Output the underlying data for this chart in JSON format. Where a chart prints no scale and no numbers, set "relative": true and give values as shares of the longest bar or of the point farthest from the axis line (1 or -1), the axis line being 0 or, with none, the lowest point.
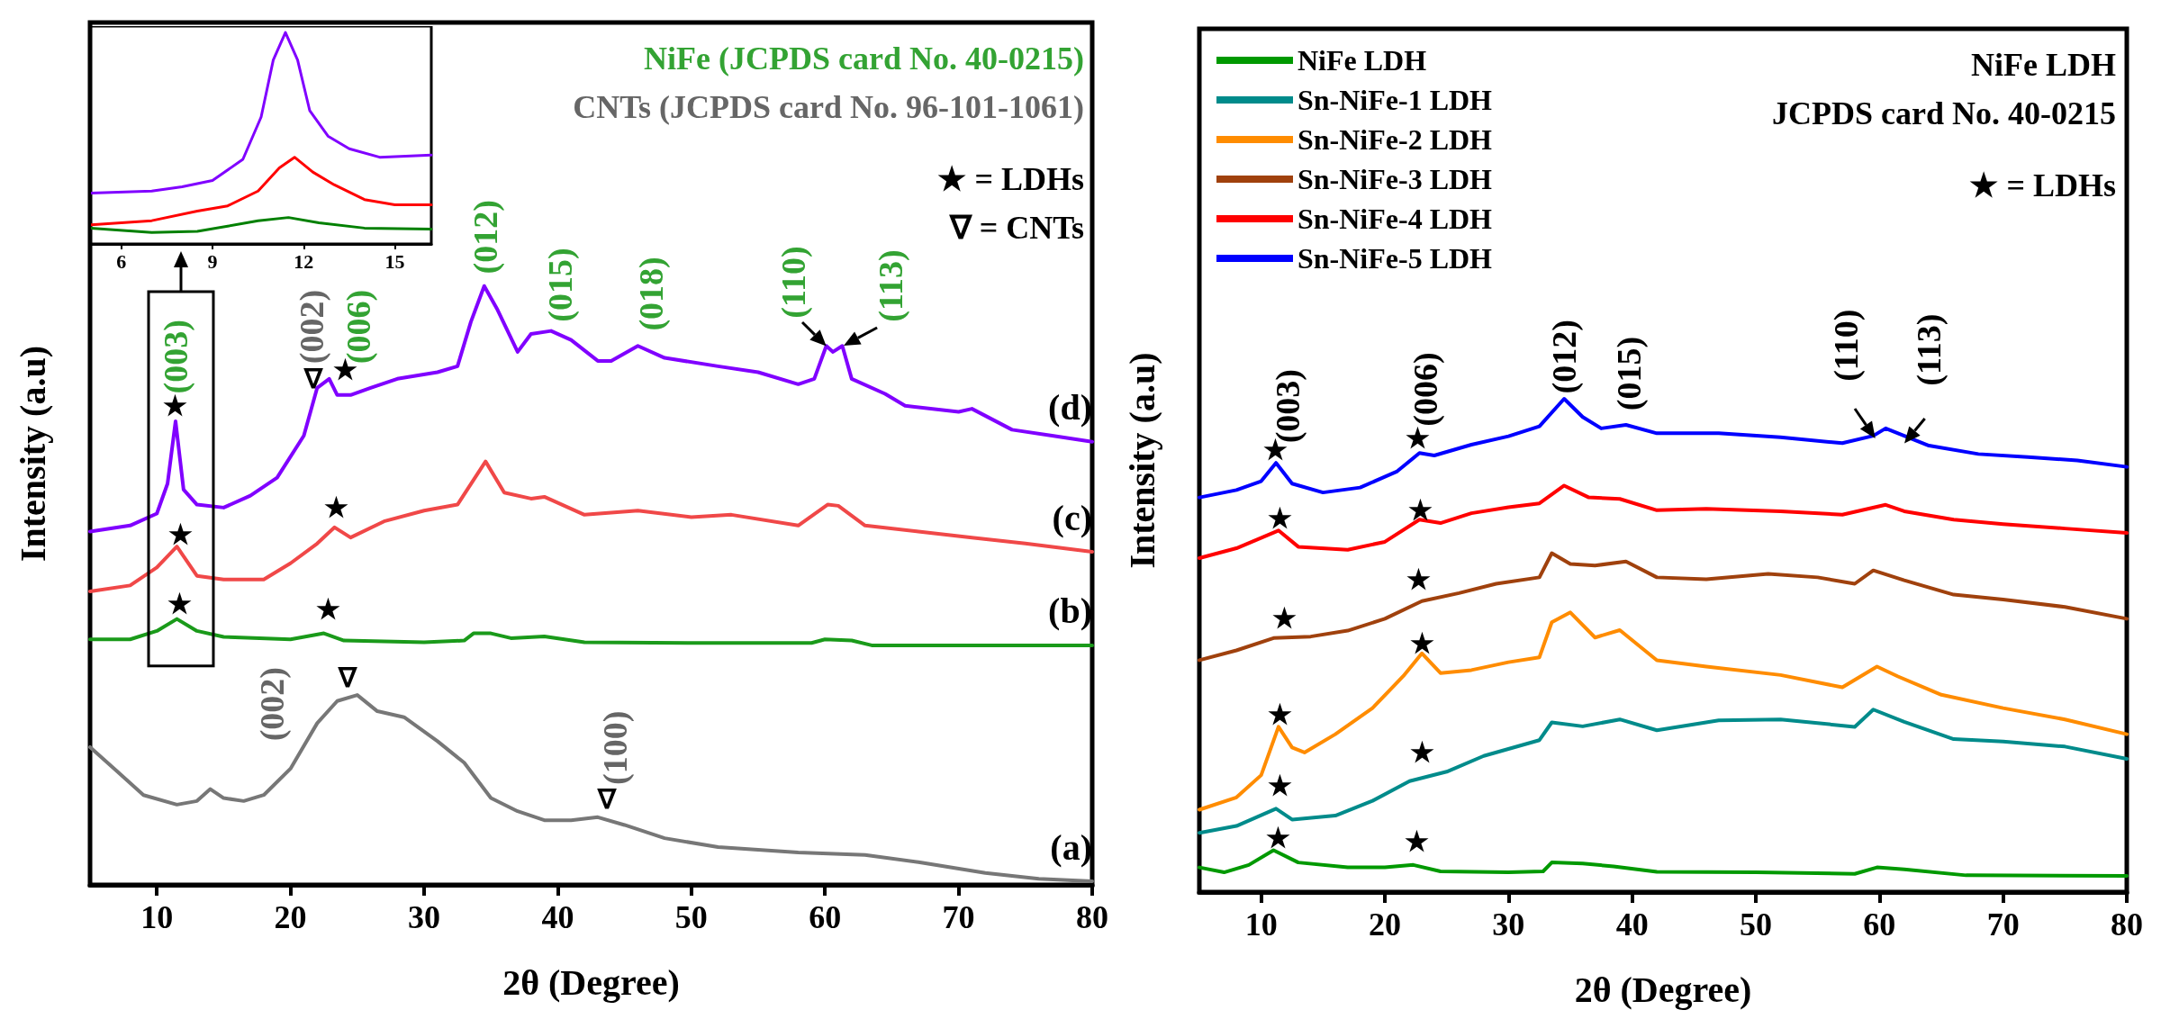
{
  "chart_data": [
    {
      "type": "line",
      "relative": true,
      "xlabel": "2θ (Degree)",
      "ylabel": "Intensity (a.u)",
      "xlim": [
        5,
        80
      ],
      "xticks": [
        10,
        20,
        30,
        40,
        50,
        60,
        70,
        80
      ],
      "tick_labels": "x",
      "legend": false,
      "marker": "none",
      "line_style": "solid",
      "series": [
        {
          "name": "(a)",
          "color": "#777777",
          "x": [
            5,
            7,
            9,
            11.5,
            13,
            14,
            15,
            16.5,
            18,
            20,
            22,
            23.5,
            25,
            26.5,
            28.5,
            31,
            33,
            35,
            37,
            39,
            41,
            43,
            45,
            48,
            52,
            58,
            63,
            67,
            72,
            76,
            80
          ],
          "values": [
            0.23,
            0.19,
            0.15,
            0.134,
            0.14,
            0.16,
            0.145,
            0.14,
            0.15,
            0.194,
            0.27,
            0.307,
            0.317,
            0.29,
            0.28,
            0.24,
            0.204,
            0.145,
            0.123,
            0.108,
            0.108,
            0.113,
            0.1,
            0.078,
            0.063,
            0.054,
            0.05,
            0.038,
            0.02,
            0.01,
            0.006
          ]
        },
        {
          "name": "(b)",
          "color": "#1a9a1a",
          "x": [
            5,
            8,
            10,
            11.5,
            13,
            15,
            20,
            22.5,
            24,
            30,
            33,
            33.7,
            35,
            36.5,
            39,
            42,
            50,
            59,
            60,
            62,
            63.5,
            80
          ],
          "values": [
            0.41,
            0.41,
            0.424,
            0.444,
            0.424,
            0.414,
            0.41,
            0.42,
            0.408,
            0.405,
            0.408,
            0.42,
            0.42,
            0.412,
            0.415,
            0.405,
            0.404,
            0.404,
            0.41,
            0.408,
            0.4,
            0.4
          ]
        },
        {
          "name": "(c)",
          "color": "#f04848",
          "x": [
            5,
            8,
            10,
            11.5,
            13,
            15,
            18,
            20,
            22,
            23.3,
            24.5,
            27,
            30,
            32.5,
            34.6,
            36,
            38,
            39,
            42,
            46,
            50,
            53,
            58,
            60.2,
            61,
            63,
            67,
            71,
            75,
            80
          ],
          "values": [
            0.49,
            0.5,
            0.53,
            0.565,
            0.516,
            0.51,
            0.51,
            0.537,
            0.57,
            0.597,
            0.58,
            0.607,
            0.625,
            0.635,
            0.707,
            0.655,
            0.645,
            0.648,
            0.618,
            0.625,
            0.614,
            0.618,
            0.6,
            0.635,
            0.633,
            0.6,
            0.59,
            0.58,
            0.57,
            0.556
          ]
        },
        {
          "name": "(d)",
          "color": "#8000ff",
          "x": [
            5,
            8,
            10,
            10.8,
            11.4,
            12,
            13,
            15,
            17,
            19,
            21,
            22,
            22.9,
            23.5,
            24.5,
            26,
            28,
            31,
            32.5,
            33.5,
            34.5,
            35.5,
            37,
            38,
            39.5,
            41,
            43,
            44,
            46,
            48,
            52,
            55,
            58,
            59.2,
            60.1,
            60.6,
            61.3,
            62,
            64.5,
            66,
            70,
            71,
            74,
            77,
            80
          ],
          "values": [
            0.59,
            0.6,
            0.62,
            0.67,
            0.774,
            0.66,
            0.635,
            0.63,
            0.65,
            0.68,
            0.75,
            0.83,
            0.845,
            0.818,
            0.818,
            0.83,
            0.845,
            0.856,
            0.866,
            0.94,
            1,
            0.96,
            0.89,
            0.92,
            0.925,
            0.91,
            0.875,
            0.875,
            0.9,
            0.88,
            0.866,
            0.856,
            0.836,
            0.845,
            0.9,
            0.89,
            0.9,
            0.845,
            0.82,
            0.8,
            0.79,
            0.795,
            0.76,
            0.75,
            0.74
          ]
        }
      ],
      "annotations": [
        "NiFe (JCPDS card No. 40-0215)",
        "CNTs (JCPDS card No. 96-101-1061)",
        "★ = LDHs",
        "∇ = CNTs",
        "(003)",
        "(002)",
        "(006)",
        "(012)",
        "(015)",
        "(018)",
        "(110)",
        "(113)",
        "(002)",
        "(100)",
        "★",
        "∇",
        "★",
        "★",
        "★",
        "★",
        "★",
        "∇",
        "∇"
      ]
    },
    {
      "type": "line",
      "relative": true,
      "xlim": [
        5,
        16.2
      ],
      "xticks": [
        6,
        9,
        12,
        15
      ],
      "tick_labels": "x",
      "legend": false,
      "marker": "none",
      "line_style": "solid",
      "series": [
        {
          "color": "#8000ff",
          "x": [
            5,
            7,
            8,
            9,
            10,
            10.6,
            11,
            11.4,
            11.8,
            12.2,
            12.8,
            13.5,
            14.5,
            16.2
          ],
          "values": [
            0.24,
            0.25,
            0.27,
            0.3,
            0.4,
            0.6,
            0.87,
            1,
            0.87,
            0.63,
            0.51,
            0.45,
            0.41,
            0.42
          ]
        },
        {
          "color": "#ff0000",
          "x": [
            5,
            7,
            8.5,
            9.5,
            10.5,
            11.2,
            11.7,
            12.3,
            13,
            14,
            15,
            16.2
          ],
          "values": [
            0.09,
            0.11,
            0.155,
            0.18,
            0.25,
            0.36,
            0.41,
            0.34,
            0.28,
            0.21,
            0.185,
            0.185
          ]
        },
        {
          "color": "#008000",
          "x": [
            5,
            7,
            8.5,
            9.5,
            10.5,
            11.5,
            12.5,
            14,
            16.2
          ],
          "values": [
            0.075,
            0.054,
            0.06,
            0.084,
            0.11,
            0.125,
            0.1,
            0.075,
            0.07
          ]
        }
      ]
    },
    {
      "type": "line",
      "relative": true,
      "xlabel": "2θ (Degree)",
      "ylabel": "Intensity (a.u)",
      "xlim": [
        5,
        80
      ],
      "xticks": [
        10,
        20,
        30,
        40,
        50,
        60,
        70,
        80
      ],
      "tick_labels": "x",
      "legend": "top left",
      "marker": "none",
      "line_style": "solid",
      "series": [
        {
          "name": "NiFe LDH",
          "color": "#009900",
          "x": [
            5,
            7,
            9,
            11,
            13,
            17,
            20,
            22.3,
            24.5,
            30,
            32.8,
            33.5,
            36,
            38.5,
            42,
            50,
            58,
            59.8,
            62,
            67,
            80
          ],
          "values": [
            0.05,
            0.04,
            0.055,
            0.085,
            0.06,
            0.05,
            0.05,
            0.055,
            0.042,
            0.04,
            0.042,
            0.06,
            0.058,
            0.052,
            0.041,
            0.04,
            0.037,
            0.05,
            0.046,
            0.034,
            0.033
          ]
        },
        {
          "name": "Sn-NiFe-1 LDH",
          "color": "#008b8b",
          "x": [
            5,
            8,
            11.2,
            12.5,
            16,
            19,
            22,
            25,
            28,
            32.5,
            33.5,
            36,
            39,
            42,
            47,
            52,
            58,
            59.5,
            62,
            66,
            70,
            75,
            80
          ],
          "values": [
            0.12,
            0.134,
            0.169,
            0.147,
            0.155,
            0.185,
            0.225,
            0.244,
            0.276,
            0.308,
            0.344,
            0.336,
            0.35,
            0.328,
            0.348,
            0.35,
            0.335,
            0.37,
            0.345,
            0.31,
            0.305,
            0.295,
            0.27
          ]
        },
        {
          "name": "Sn-NiFe-2 LDH",
          "color": "#ff8c00",
          "x": [
            5,
            8,
            10,
            11.4,
            12.5,
            13.5,
            16,
            19,
            21.5,
            23,
            24.5,
            27,
            30,
            32.5,
            33.5,
            35,
            37,
            39,
            42,
            46,
            52,
            57,
            59.8,
            61.5,
            65,
            70,
            75,
            80
          ],
          "values": [
            0.167,
            0.192,
            0.237,
            0.335,
            0.293,
            0.283,
            0.32,
            0.373,
            0.438,
            0.484,
            0.444,
            0.45,
            0.466,
            0.476,
            0.547,
            0.567,
            0.516,
            0.531,
            0.47,
            0.457,
            0.44,
            0.415,
            0.457,
            0.437,
            0.4,
            0.373,
            0.35,
            0.32
          ]
        },
        {
          "name": "Sn-NiFe-3 LDH",
          "color": "#a0410d",
          "x": [
            5,
            8,
            11,
            14,
            17,
            20,
            23,
            26,
            29,
            32.5,
            33.5,
            35,
            37,
            39.5,
            42,
            46,
            51,
            55,
            58,
            59.5,
            62,
            66,
            70,
            75,
            80
          ],
          "values": [
            0.47,
            0.49,
            0.515,
            0.518,
            0.53,
            0.554,
            0.59,
            0.606,
            0.625,
            0.638,
            0.687,
            0.665,
            0.662,
            0.67,
            0.638,
            0.634,
            0.645,
            0.638,
            0.625,
            0.652,
            0.632,
            0.603,
            0.593,
            0.578,
            0.554
          ]
        },
        {
          "name": "Sn-NiFe-4 LDH",
          "color": "#ff0000",
          "x": [
            5,
            8,
            11.4,
            13,
            17,
            20,
            22.8,
            24.5,
            27,
            30,
            32.5,
            34.5,
            36.5,
            39,
            42,
            46,
            52,
            57,
            60.5,
            62,
            66,
            70,
            75,
            80
          ],
          "values": [
            0.677,
            0.697,
            0.733,
            0.7,
            0.694,
            0.71,
            0.755,
            0.748,
            0.768,
            0.78,
            0.788,
            0.824,
            0.8,
            0.797,
            0.774,
            0.777,
            0.772,
            0.765,
            0.785,
            0.772,
            0.755,
            0.746,
            0.737,
            0.728
          ]
        },
        {
          "name": "Sn-NiFe-5 LDH",
          "color": "#0000ff",
          "x": [
            5,
            8,
            10,
            11.2,
            12.5,
            15,
            18,
            21,
            22.8,
            24,
            27,
            30,
            32.5,
            34.5,
            36,
            37.5,
            39.5,
            42,
            47,
            52,
            57,
            59.5,
            60.5,
            61.5,
            64,
            68,
            72,
            76,
            80
          ],
          "values": [
            0.8,
            0.815,
            0.833,
            0.87,
            0.828,
            0.81,
            0.82,
            0.853,
            0.89,
            0.885,
            0.907,
            0.924,
            0.944,
            1,
            0.963,
            0.94,
            0.947,
            0.93,
            0.93,
            0.922,
            0.91,
            0.925,
            0.94,
            0.93,
            0.905,
            0.888,
            0.882,
            0.875,
            0.862
          ]
        }
      ],
      "annotations": [
        "NiFe LDH",
        "JCPDS card No. 40-0215",
        "★ = LDHs",
        "(003)",
        "(006)",
        "(012)",
        "(015)",
        "(110)",
        "(113)",
        "★",
        "★",
        "★",
        "★",
        "★",
        "★",
        "★",
        "★",
        "★",
        "★",
        "★",
        "★"
      ]
    }
  ]
}
